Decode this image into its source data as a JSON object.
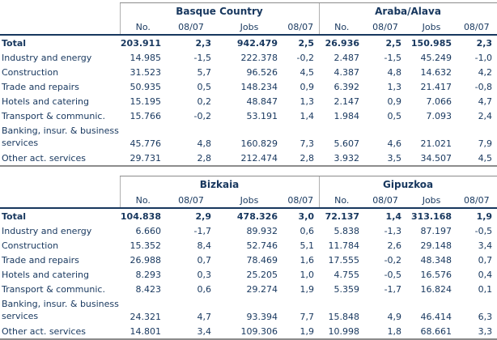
{
  "colors": {
    "text_navy": "#17375e",
    "line_gray": "#8c8c8c",
    "line_navy": "#17375e"
  },
  "column_headers": [
    "No.",
    "08/07",
    "Jobs",
    "08/07"
  ],
  "tables": [
    {
      "groups": [
        "Basque Country",
        "Araba/Alava"
      ],
      "rows": [
        {
          "label": "Total",
          "bold": true,
          "two_line": false,
          "values": [
            "203.911",
            "2,3",
            "942.479",
            "2,5",
            "26.936",
            "2,5",
            "150.985",
            "2,3"
          ]
        },
        {
          "label": "Industry and energy",
          "bold": false,
          "two_line": false,
          "values": [
            "14.985",
            "-1,5",
            "222.378",
            "-0,2",
            "2.487",
            "-1,5",
            "45.249",
            "-1,0"
          ]
        },
        {
          "label": "Construction",
          "bold": false,
          "two_line": false,
          "values": [
            "31.523",
            "5,7",
            "96.526",
            "4,5",
            "4.387",
            "4,8",
            "14.632",
            "4,2"
          ]
        },
        {
          "label": "Trade and repairs",
          "bold": false,
          "two_line": false,
          "values": [
            "50.935",
            "0,5",
            "148.234",
            "0,9",
            "6.392",
            "1,3",
            "21.417",
            "-0,8"
          ]
        },
        {
          "label": "Hotels and catering",
          "bold": false,
          "two_line": false,
          "values": [
            "15.195",
            "0,2",
            "48.847",
            "1,3",
            "2.147",
            "0,9",
            "7.066",
            "4,7"
          ]
        },
        {
          "label": "Transport & communic.",
          "bold": false,
          "two_line": false,
          "values": [
            "15.766",
            "-0,2",
            "53.191",
            "1,4",
            "1.984",
            "0,5",
            "7.093",
            "2,4"
          ]
        },
        {
          "label": "Banking, insur. & business services",
          "bold": false,
          "two_line": true,
          "values": [
            "45.776",
            "4,8",
            "160.829",
            "7,3",
            "5.607",
            "4,6",
            "21.021",
            "7,9"
          ]
        },
        {
          "label": "Other act. services",
          "bold": false,
          "two_line": false,
          "values": [
            "29.731",
            "2,8",
            "212.474",
            "2,8",
            "3.932",
            "3,5",
            "34.507",
            "4,5"
          ]
        }
      ]
    },
    {
      "groups": [
        "Bizkaia",
        "Gipuzkoa"
      ],
      "rows": [
        {
          "label": "Total",
          "bold": true,
          "two_line": false,
          "values": [
            "104.838",
            "2,9",
            "478.326",
            "3,0",
            "72.137",
            "1,4",
            "313.168",
            "1,9"
          ]
        },
        {
          "label": "Industry and energy",
          "bold": false,
          "two_line": false,
          "values": [
            "6.660",
            "-1,7",
            "89.932",
            "0,6",
            "5.838",
            "-1,3",
            "87.197",
            "-0,5"
          ]
        },
        {
          "label": "Construction",
          "bold": false,
          "two_line": false,
          "values": [
            "15.352",
            "8,4",
            "52.746",
            "5,1",
            "11.784",
            "2,6",
            "29.148",
            "3,4"
          ]
        },
        {
          "label": "Trade and repairs",
          "bold": false,
          "two_line": false,
          "values": [
            "26.988",
            "0,7",
            "78.469",
            "1,6",
            "17.555",
            "-0,2",
            "48.348",
            "0,7"
          ]
        },
        {
          "label": "Hotels and catering",
          "bold": false,
          "two_line": false,
          "values": [
            "8.293",
            "0,3",
            "25.205",
            "1,0",
            "4.755",
            "-0,5",
            "16.576",
            "0,4"
          ]
        },
        {
          "label": "Transport & communic.",
          "bold": false,
          "two_line": false,
          "values": [
            "8.423",
            "0,6",
            "29.274",
            "1,9",
            "5.359",
            "-1,7",
            "16.824",
            "0,1"
          ]
        },
        {
          "label": "Banking, insur. & business services",
          "bold": false,
          "two_line": true,
          "values": [
            "24.321",
            "4,7",
            "93.394",
            "7,7",
            "15.848",
            "4,9",
            "46.414",
            "6,3"
          ]
        },
        {
          "label": "Other act. services",
          "bold": false,
          "two_line": false,
          "values": [
            "14.801",
            "3,4",
            "109.306",
            "1,9",
            "10.998",
            "1,8",
            "68.661",
            "3,3"
          ]
        }
      ]
    }
  ]
}
